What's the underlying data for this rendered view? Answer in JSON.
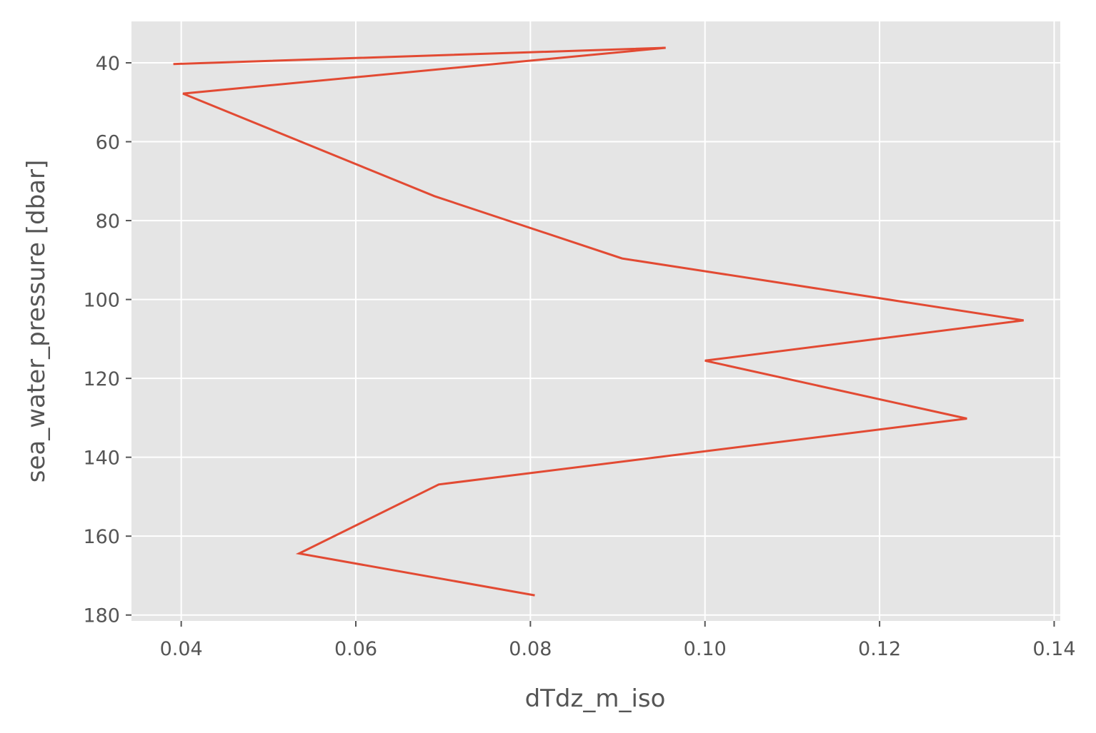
{
  "chart_data": {
    "type": "line",
    "title": "",
    "xlabel": "dTdz_m_iso",
    "ylabel": "sea_water_pressure [dbar]",
    "xlim": [
      0.0343,
      0.1407
    ],
    "ylim": [
      181.5,
      29.5
    ],
    "y_inverted": true,
    "grid": true,
    "x_ticks": [
      0.04,
      0.06,
      0.08,
      0.1,
      0.12,
      0.14
    ],
    "x_tick_labels": [
      "0.04",
      "0.06",
      "0.08",
      "0.10",
      "0.12",
      "0.14"
    ],
    "y_ticks": [
      40,
      60,
      80,
      100,
      120,
      140,
      160,
      180
    ],
    "y_tick_labels": [
      "40",
      "60",
      "80",
      "100",
      "120",
      "140",
      "160",
      "180"
    ],
    "series": [
      {
        "color": "#e24a33",
        "x": [
          0.0391,
          0.0955,
          0.0402,
          0.069,
          0.0905,
          0.1365,
          0.1,
          0.13,
          0.0695,
          0.0535,
          0.0805
        ],
        "y": [
          40.3,
          36.2,
          47.8,
          73.8,
          89.6,
          105.3,
          115.5,
          130.2,
          146.9,
          164.4,
          175.0
        ]
      }
    ],
    "colors": {
      "plot_background": "#e5e5e5",
      "grid": "#ffffff",
      "text": "#555555"
    }
  }
}
